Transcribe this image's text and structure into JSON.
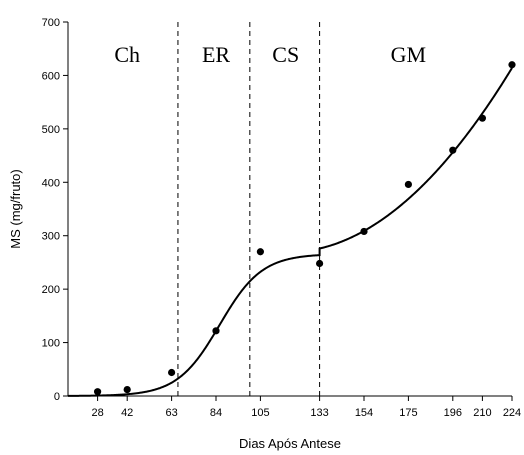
{
  "chart_data": {
    "type": "scatter",
    "xlabel": "Dias Após Antese",
    "ylabel": "MS (mg/fruto)",
    "ylim": [
      0,
      700
    ],
    "yticks": [
      0,
      100,
      200,
      300,
      400,
      500,
      600,
      700
    ],
    "xticks": [
      28,
      42,
      63,
      84,
      105,
      133,
      154,
      175,
      196,
      210,
      224
    ],
    "grid": false,
    "points": [
      {
        "x": 28,
        "y": 8
      },
      {
        "x": 42,
        "y": 12
      },
      {
        "x": 63,
        "y": 44
      },
      {
        "x": 84,
        "y": 122
      },
      {
        "x": 105,
        "y": 270
      },
      {
        "x": 133,
        "y": 248
      },
      {
        "x": 154,
        "y": 308
      },
      {
        "x": 175,
        "y": 396
      },
      {
        "x": 196,
        "y": 460
      },
      {
        "x": 210,
        "y": 520
      },
      {
        "x": 224,
        "y": 620
      }
    ],
    "fit_sigmoid": {
      "x_start": 14,
      "x_end": 133,
      "A": 266,
      "k": 0.1,
      "x0": 85.7
    },
    "fit_poly": {
      "x_start": 133,
      "x_end": 224,
      "y_start": 276,
      "y_end": 614
    },
    "phase_boundaries": [
      66,
      100,
      133
    ],
    "phases": [
      {
        "label": "Ch",
        "x": 42
      },
      {
        "label": "ER",
        "x": 84
      },
      {
        "label": "CS",
        "x": 117
      },
      {
        "label": "GM",
        "x": 175
      }
    ]
  }
}
